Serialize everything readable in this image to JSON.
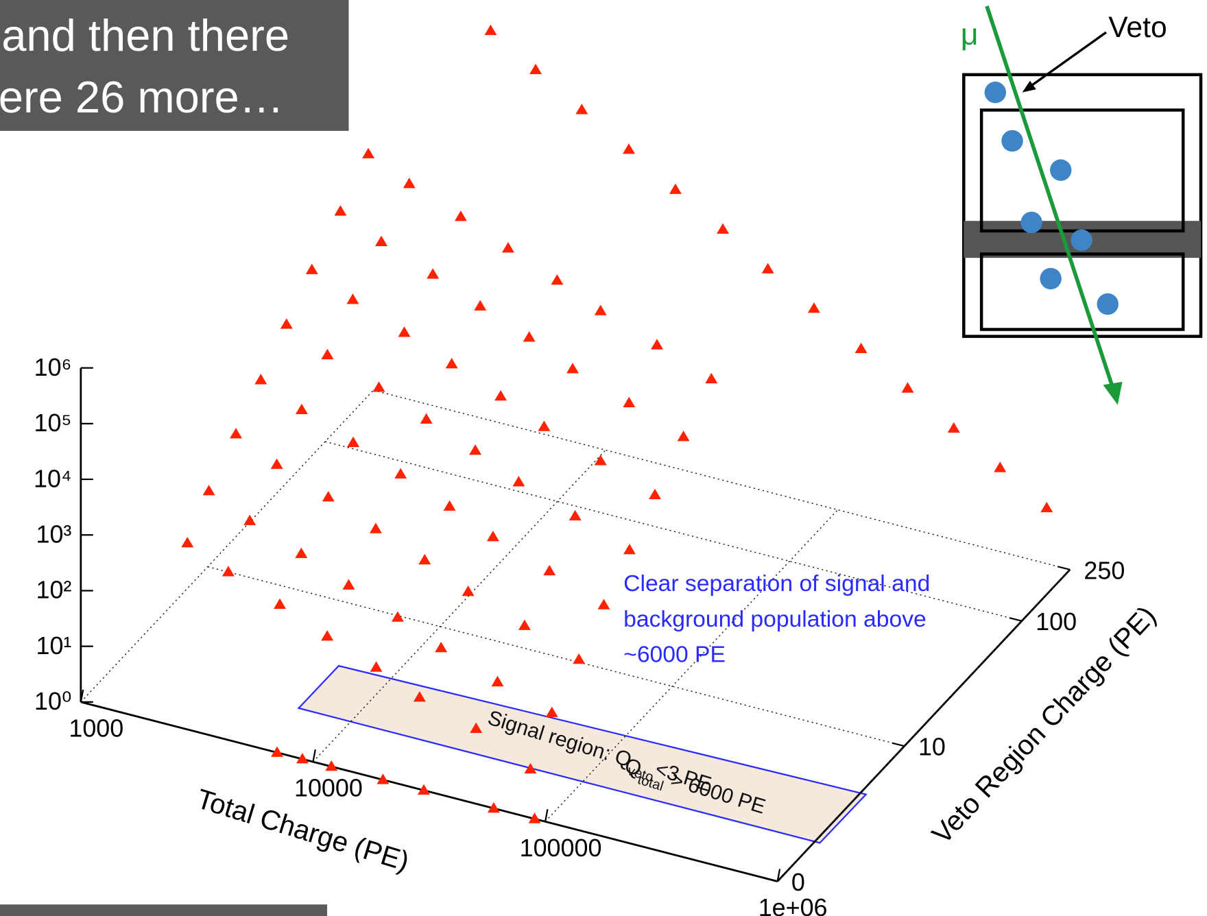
{
  "slide": {
    "title_lines": [
      "and then there",
      "ere 26 more…"
    ]
  },
  "inset": {
    "muon_label": "μ",
    "veto_label": "Veto"
  },
  "chart_data": {
    "type": "scatter3d",
    "xlabel": "Total Charge (PE)",
    "ylabel": "Veto Region Charge (PE)",
    "xlim": [
      1000,
      1000000
    ],
    "xticks": [
      1000,
      10000,
      100000,
      {
        "value": 1000000,
        "label": "1e+06"
      }
    ],
    "ylim": [
      0,
      250
    ],
    "yticks": [
      0,
      10,
      100,
      250
    ],
    "zlim": [
      1,
      1000000
    ],
    "zticks": [
      {
        "value": 1,
        "label": "10⁰"
      },
      {
        "value": 10,
        "label": "10¹"
      },
      {
        "value": 100,
        "label": "10²"
      },
      {
        "value": 1000,
        "label": "10³"
      },
      {
        "value": 10000,
        "label": "10⁴"
      },
      {
        "value": 100000,
        "label": "10⁵"
      },
      {
        "value": 1000000,
        "label": "10⁶"
      }
    ],
    "xscale": "log",
    "yscale": "log1p",
    "zscale": "log",
    "grid": true,
    "color": "#ff2200",
    "series": [
      {
        "x": [
          2000,
          3000,
          5000,
          8000,
          13000,
          20000,
          35000,
          60000,
          2000,
          3000,
          5000,
          8000,
          13000,
          20000,
          35000,
          60000,
          2000,
          3000,
          5000,
          8000,
          13000,
          20000,
          35000,
          60000,
          2000,
          3000,
          5000,
          8000,
          13000,
          20000,
          35000,
          60000,
          2000,
          3000,
          5000,
          8000,
          13000,
          20000,
          35000,
          60000,
          2000,
          3000,
          5000,
          8000,
          13000,
          20000,
          35000,
          60000,
          2000,
          3000,
          5000,
          8000,
          13000,
          20000,
          35000,
          60000,
          2000,
          3000,
          5000,
          8000,
          13000,
          20000,
          35000,
          60000
        ],
        "y": [
          1,
          1,
          1,
          1,
          1,
          1,
          1,
          1,
          2,
          2,
          2,
          2,
          2,
          2,
          2,
          2,
          4,
          4,
          4,
          4,
          4,
          4,
          4,
          4,
          7,
          7,
          7,
          7,
          7,
          7,
          7,
          7,
          12,
          12,
          12,
          12,
          12,
          12,
          12,
          12,
          20,
          20,
          20,
          20,
          20,
          20,
          20,
          20,
          35,
          35,
          35,
          35,
          35,
          35,
          35,
          35,
          60,
          60,
          60,
          60,
          60,
          60,
          60,
          60
        ],
        "z": [
          300,
          140,
          63,
          28,
          13,
          6,
          3,
          1,
          1000,
          450,
          200,
          90,
          40,
          18,
          8,
          4,
          3200,
          1400,
          630,
          280,
          130,
          56,
          25,
          11,
          10000,
          4500,
          2000,
          900,
          400,
          180,
          80,
          35,
          32000,
          14000,
          6300,
          2800,
          1300,
          560,
          250,
          110,
          100000,
          45000,
          20000,
          9000,
          4000,
          1800,
          800,
          350,
          320000,
          140000,
          63000,
          28000,
          13000,
          5600,
          2500,
          1100,
          1000000,
          450000,
          200000,
          90000,
          40000,
          18000,
          8000,
          3500
        ]
      },
      {
        "x": [
          3200,
          5000,
          7900,
          12600,
          20000,
          32000,
          50000,
          79000,
          126000,
          200000,
          316000,
          500000,
          794000
        ],
        "y": [
          250,
          250,
          250,
          250,
          250,
          250,
          250,
          250,
          250,
          250,
          250,
          250,
          250
        ],
        "z": [
          10000000,
          3200000,
          1000000,
          320000,
          100000,
          32000,
          10000,
          3200,
          1000,
          320,
          100,
          32,
          10
        ]
      },
      {
        "x": [
          7000,
          9000,
          12000,
          20000,
          30000,
          60000,
          90000
        ],
        "y": [
          0,
          0,
          0,
          0,
          0,
          0,
          0
        ],
        "z": [
          1,
          1,
          1,
          1,
          1,
          1,
          1
        ]
      }
    ],
    "annotation_lines": [
      "Clear separation of signal and",
      "background population above",
      "~6000 PE"
    ],
    "signal_region_lines": [
      [
        "Signal region: Q",
        "veto",
        "<3 PE"
      ],
      [
        "Q",
        "total",
        " > 6000 PE"
      ]
    ]
  }
}
